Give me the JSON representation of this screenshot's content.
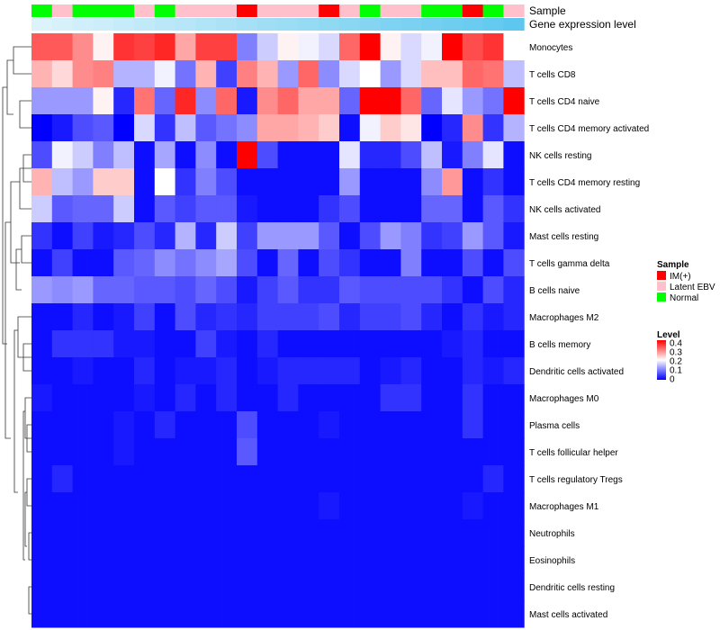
{
  "chart_data": {
    "type": "heatmap",
    "annotation_labels": [
      "Sample",
      "Gene expression level"
    ],
    "rows": [
      "Monocytes",
      "T cells CD8",
      "T cells CD4 naive",
      "T cells CD4 memory activated",
      "NK cells resting",
      "T cells CD4 memory resting",
      "NK cells activated",
      "Mast cells resting",
      "T cells gamma delta",
      "B cells naive",
      "Macrophages M2",
      "B cells memory",
      "Dendritic cells activated",
      "Macrophages M0",
      "Plasma cells",
      "T cells follicular helper",
      "T cells regulatory  Tregs",
      "Macrophages M1",
      "Neutrophils",
      "Eosinophils",
      "Dendritic cells resting",
      "Mast cells activated"
    ],
    "sample_groups": [
      "Normal",
      "Latent EBV",
      "Normal",
      "Normal",
      "Normal",
      "Latent EBV",
      "Normal",
      "Latent EBV",
      "Latent EBV",
      "Latent EBV",
      "IM(+)",
      "Latent EBV",
      "Latent EBV",
      "Latent EBV",
      "IM(+)",
      "Latent EBV",
      "Normal",
      "Latent EBV",
      "Latent EBV",
      "Normal",
      "Normal",
      "IM(+)",
      "Normal",
      "Latent EBV"
    ],
    "gene_expression_level": [
      0.02,
      0.06,
      0.1,
      0.14,
      0.18,
      0.22,
      0.26,
      0.3,
      0.34,
      0.38,
      0.42,
      0.46,
      0.5,
      0.54,
      0.58,
      0.62,
      0.66,
      0.7,
      0.74,
      0.78,
      0.82,
      0.86,
      0.9,
      0.95
    ],
    "values": [
      [
        0.33,
        0.33,
        0.29,
        0.21,
        0.36,
        0.35,
        0.37,
        0.27,
        0.35,
        0.35,
        0.1,
        0.16,
        0.21,
        0.19,
        0.17,
        0.32,
        0.4,
        0.21,
        0.17,
        0.19,
        0.4,
        0.34,
        0.36,
        0.2
      ],
      [
        0.26,
        0.23,
        0.29,
        0.3,
        0.14,
        0.14,
        0.19,
        0.09,
        0.26,
        0.05,
        0.3,
        0.26,
        0.12,
        0.32,
        0.11,
        0.17,
        0.2,
        0.12,
        0.17,
        0.25,
        0.25,
        0.32,
        0.31,
        0.15
      ],
      [
        0.12,
        0.12,
        0.12,
        0.21,
        0.03,
        0.31,
        0.08,
        0.37,
        0.11,
        0.32,
        0.02,
        0.29,
        0.32,
        0.27,
        0.27,
        0.08,
        0.4,
        0.4,
        0.32,
        0.08,
        0.18,
        0.12,
        0.09,
        0.4
      ],
      [
        0.0,
        0.02,
        0.06,
        0.07,
        0.0,
        0.17,
        0.04,
        0.15,
        0.07,
        0.09,
        0.11,
        0.27,
        0.27,
        0.26,
        0.24,
        0.01,
        0.19,
        0.24,
        0.22,
        0.0,
        0.03,
        0.29,
        0.04,
        0.14
      ],
      [
        0.06,
        0.19,
        0.16,
        0.1,
        0.15,
        0.01,
        0.13,
        0.01,
        0.11,
        0.01,
        0.4,
        0.06,
        0.01,
        0.01,
        0.01,
        0.18,
        0.03,
        0.03,
        0.06,
        0.15,
        0.02,
        0.1,
        0.18,
        0.01
      ],
      [
        0.26,
        0.15,
        0.12,
        0.24,
        0.24,
        0.01,
        0.2,
        0.04,
        0.1,
        0.06,
        0.01,
        0.01,
        0.01,
        0.01,
        0.01,
        0.12,
        0.01,
        0.01,
        0.01,
        0.11,
        0.28,
        0.01,
        0.04,
        0.01
      ],
      [
        0.16,
        0.07,
        0.08,
        0.08,
        0.16,
        0.01,
        0.07,
        0.05,
        0.07,
        0.07,
        0.02,
        0.01,
        0.01,
        0.01,
        0.04,
        0.06,
        0.01,
        0.01,
        0.01,
        0.08,
        0.08,
        0.01,
        0.07,
        0.04
      ],
      [
        0.04,
        0.01,
        0.05,
        0.02,
        0.03,
        0.06,
        0.03,
        0.14,
        0.03,
        0.16,
        0.05,
        0.12,
        0.12,
        0.12,
        0.07,
        0.01,
        0.06,
        0.12,
        0.1,
        0.04,
        0.05,
        0.12,
        0.07,
        0.02
      ],
      [
        0.01,
        0.05,
        0.01,
        0.01,
        0.07,
        0.08,
        0.11,
        0.09,
        0.11,
        0.13,
        0.06,
        0.01,
        0.08,
        0.01,
        0.06,
        0.04,
        0.01,
        0.01,
        0.1,
        0.01,
        0.01,
        0.06,
        0.01,
        0.06
      ],
      [
        0.12,
        0.11,
        0.12,
        0.08,
        0.08,
        0.07,
        0.07,
        0.06,
        0.08,
        0.06,
        0.02,
        0.05,
        0.07,
        0.04,
        0.04,
        0.07,
        0.06,
        0.06,
        0.06,
        0.06,
        0.04,
        0.01,
        0.06,
        0.03
      ],
      [
        0.01,
        0.01,
        0.03,
        0.01,
        0.02,
        0.05,
        0.01,
        0.06,
        0.03,
        0.04,
        0.03,
        0.05,
        0.05,
        0.05,
        0.06,
        0.03,
        0.05,
        0.05,
        0.06,
        0.03,
        0.01,
        0.04,
        0.02,
        0.03
      ],
      [
        0.01,
        0.04,
        0.04,
        0.04,
        0.02,
        0.02,
        0.01,
        0.01,
        0.05,
        0.02,
        0.01,
        0.03,
        0.01,
        0.01,
        0.01,
        0.01,
        0.01,
        0.01,
        0.01,
        0.01,
        0.02,
        0.03,
        0.01,
        0.01
      ],
      [
        0.01,
        0.01,
        0.02,
        0.01,
        0.01,
        0.03,
        0.01,
        0.02,
        0.02,
        0.03,
        0.01,
        0.02,
        0.03,
        0.03,
        0.03,
        0.03,
        0.01,
        0.02,
        0.03,
        0.01,
        0.01,
        0.03,
        0.02,
        0.03
      ],
      [
        0.02,
        0.01,
        0.01,
        0.01,
        0.01,
        0.02,
        0.01,
        0.03,
        0.01,
        0.03,
        0.01,
        0.01,
        0.03,
        0.01,
        0.01,
        0.01,
        0.01,
        0.04,
        0.04,
        0.01,
        0.01,
        0.04,
        0.01,
        0.01
      ],
      [
        0.01,
        0.01,
        0.01,
        0.01,
        0.02,
        0.01,
        0.03,
        0.01,
        0.01,
        0.01,
        0.06,
        0.01,
        0.01,
        0.01,
        0.02,
        0.01,
        0.01,
        0.01,
        0.01,
        0.01,
        0.01,
        0.04,
        0.01,
        0.01
      ],
      [
        0.01,
        0.01,
        0.01,
        0.01,
        0.02,
        0.01,
        0.01,
        0.01,
        0.01,
        0.01,
        0.07,
        0.01,
        0.01,
        0.01,
        0.01,
        0.01,
        0.01,
        0.01,
        0.01,
        0.01,
        0.01,
        0.01,
        0.01,
        0.01
      ],
      [
        0.01,
        0.03,
        0.01,
        0.01,
        0.01,
        0.01,
        0.01,
        0.01,
        0.01,
        0.01,
        0.01,
        0.01,
        0.01,
        0.01,
        0.01,
        0.01,
        0.01,
        0.01,
        0.01,
        0.01,
        0.01,
        0.01,
        0.03,
        0.01
      ],
      [
        0.01,
        0.01,
        0.01,
        0.01,
        0.01,
        0.01,
        0.01,
        0.01,
        0.01,
        0.01,
        0.01,
        0.01,
        0.01,
        0.01,
        0.02,
        0.01,
        0.01,
        0.01,
        0.01,
        0.01,
        0.01,
        0.02,
        0.01,
        0.01
      ],
      [
        0.01,
        0.01,
        0.01,
        0.01,
        0.01,
        0.01,
        0.01,
        0.01,
        0.01,
        0.01,
        0.01,
        0.01,
        0.01,
        0.01,
        0.01,
        0.01,
        0.01,
        0.01,
        0.01,
        0.01,
        0.01,
        0.01,
        0.01,
        0.01
      ],
      [
        0.01,
        0.01,
        0.01,
        0.01,
        0.01,
        0.01,
        0.01,
        0.01,
        0.01,
        0.01,
        0.01,
        0.01,
        0.01,
        0.01,
        0.01,
        0.01,
        0.01,
        0.01,
        0.01,
        0.01,
        0.01,
        0.01,
        0.01,
        0.01
      ],
      [
        0.01,
        0.01,
        0.01,
        0.01,
        0.01,
        0.01,
        0.01,
        0.01,
        0.01,
        0.01,
        0.01,
        0.01,
        0.01,
        0.01,
        0.01,
        0.01,
        0.01,
        0.01,
        0.01,
        0.01,
        0.01,
        0.01,
        0.01,
        0.01
      ],
      [
        0.01,
        0.01,
        0.01,
        0.01,
        0.01,
        0.01,
        0.01,
        0.01,
        0.01,
        0.01,
        0.01,
        0.01,
        0.01,
        0.01,
        0.01,
        0.01,
        0.01,
        0.01,
        0.01,
        0.01,
        0.01,
        0.01,
        0.01,
        0.01
      ]
    ],
    "color_scale": {
      "min": 0,
      "max": 0.4,
      "low": "#0000ff",
      "mid": "#ffffff",
      "high": "#ff0000"
    },
    "legend": {
      "sample_title": "Sample",
      "sample_entries": [
        {
          "label": "IM(+)",
          "color": "#ff0000"
        },
        {
          "label": "Latent EBV",
          "color": "#ffc0cb"
        },
        {
          "label": "Normal",
          "color": "#00ff00"
        }
      ],
      "level_title": "Level",
      "level_ticks": [
        "0.4",
        "0.3",
        "0.2",
        "0.1",
        "0"
      ],
      "placement": "right"
    },
    "expression_colors": {
      "low": "#dff4fb",
      "high": "#56c5ee"
    },
    "dendrogram": "rows-left"
  }
}
